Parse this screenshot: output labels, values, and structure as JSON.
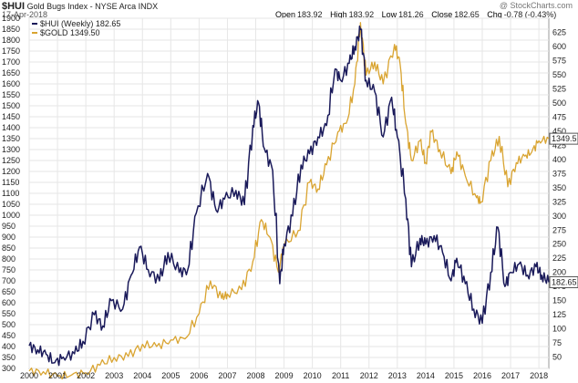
{
  "header": {
    "ticker": "$HUI",
    "title_rest": "Gold Bugs Index - NYSE Arca",
    "exchange": "INDX",
    "date": "17-Apr-2018",
    "watermark": "@ StockCharts.com",
    "ohlc": [
      {
        "label": "Open",
        "value": "183.92"
      },
      {
        "label": "High",
        "value": "183.92"
      },
      {
        "label": "Low",
        "value": "181.26"
      },
      {
        "label": "Close",
        "value": "182.65"
      },
      {
        "label": "Chg",
        "value": "-0.78 (-0.43%)"
      }
    ]
  },
  "chart_data": {
    "type": "line",
    "colors": {
      "hui": "#1a1a5a",
      "gold": "#d9a431",
      "grid": "#e6e6e6",
      "border": "#999999",
      "badge_hui_bg": "#1a1a5a"
    },
    "legend": [
      {
        "name": "$HUI (Weekly) 182.65",
        "color": "#1a1a5a"
      },
      {
        "name": "$GOLD 1349.50",
        "color": "#d9a431"
      }
    ],
    "x_ticks": [
      "2000",
      "2001",
      "2002",
      "2003",
      "2004",
      "2005",
      "2006",
      "2007",
      "2008",
      "2009",
      "2010",
      "2011",
      "2012",
      "2013",
      "2014",
      "2015",
      "2016",
      "2017",
      "2018"
    ],
    "x_range": [
      2000.0,
      2018.35
    ],
    "y_left": {
      "min": 300,
      "max": 1900,
      "ticks": [
        300,
        350,
        400,
        450,
        500,
        550,
        600,
        650,
        700,
        750,
        800,
        850,
        900,
        950,
        1000,
        1050,
        1100,
        1150,
        1200,
        1250,
        1300,
        1350,
        1400,
        1450,
        1500,
        1550,
        1600,
        1650,
        1700,
        1750,
        1800,
        1850,
        1900
      ]
    },
    "y_right": {
      "min": 30,
      "max": 650,
      "ticks": [
        50,
        75,
        100,
        125,
        150,
        175,
        200,
        225,
        250,
        275,
        300,
        325,
        350,
        375,
        400,
        425,
        450,
        475,
        500,
        525,
        550,
        575,
        600,
        625
      ]
    },
    "last_labels": {
      "gold": "1349.5",
      "hui": "182.65"
    },
    "series": [
      {
        "name": "$GOLD",
        "axis": "left",
        "points": [
          [
            2000.0,
            288
          ],
          [
            2000.5,
            285
          ],
          [
            2001.0,
            265
          ],
          [
            2001.5,
            270
          ],
          [
            2002.0,
            280
          ],
          [
            2002.5,
            315
          ],
          [
            2003.0,
            350
          ],
          [
            2003.5,
            355
          ],
          [
            2004.0,
            410
          ],
          [
            2004.5,
            400
          ],
          [
            2005.0,
            430
          ],
          [
            2005.5,
            435
          ],
          [
            2006.0,
            550
          ],
          [
            2006.4,
            700
          ],
          [
            2006.8,
            620
          ],
          [
            2007.0,
            640
          ],
          [
            2007.5,
            660
          ],
          [
            2007.9,
            790
          ],
          [
            2008.2,
            980
          ],
          [
            2008.5,
            900
          ],
          [
            2008.8,
            740
          ],
          [
            2009.0,
            860
          ],
          [
            2009.5,
            930
          ],
          [
            2009.9,
            1150
          ],
          [
            2010.2,
            1120
          ],
          [
            2010.5,
            1230
          ],
          [
            2010.9,
            1380
          ],
          [
            2011.2,
            1420
          ],
          [
            2011.5,
            1600
          ],
          [
            2011.7,
            1880
          ],
          [
            2011.9,
            1640
          ],
          [
            2012.2,
            1700
          ],
          [
            2012.5,
            1600
          ],
          [
            2012.9,
            1780
          ],
          [
            2013.1,
            1690
          ],
          [
            2013.3,
            1420
          ],
          [
            2013.5,
            1250
          ],
          [
            2013.8,
            1340
          ],
          [
            2014.0,
            1240
          ],
          [
            2014.2,
            1380
          ],
          [
            2014.5,
            1300
          ],
          [
            2014.9,
            1190
          ],
          [
            2015.1,
            1290
          ],
          [
            2015.4,
            1180
          ],
          [
            2015.8,
            1080
          ],
          [
            2015.95,
            1060
          ],
          [
            2016.3,
            1250
          ],
          [
            2016.6,
            1360
          ],
          [
            2016.9,
            1130
          ],
          [
            2017.2,
            1240
          ],
          [
            2017.5,
            1270
          ],
          [
            2017.75,
            1290
          ],
          [
            2018.0,
            1340
          ],
          [
            2018.35,
            1349.5
          ]
        ]
      },
      {
        "name": "$HUI",
        "axis": "right",
        "points": [
          [
            2000.0,
            70
          ],
          [
            2000.3,
            63
          ],
          [
            2000.6,
            55
          ],
          [
            2000.9,
            40
          ],
          [
            2001.2,
            50
          ],
          [
            2001.6,
            56
          ],
          [
            2001.9,
            78
          ],
          [
            2002.3,
            125
          ],
          [
            2002.6,
            105
          ],
          [
            2002.9,
            150
          ],
          [
            2003.3,
            135
          ],
          [
            2003.6,
            195
          ],
          [
            2003.9,
            245
          ],
          [
            2004.2,
            205
          ],
          [
            2004.6,
            185
          ],
          [
            2004.9,
            235
          ],
          [
            2005.3,
            200
          ],
          [
            2005.6,
            205
          ],
          [
            2005.9,
            305
          ],
          [
            2006.3,
            375
          ],
          [
            2006.6,
            310
          ],
          [
            2006.9,
            330
          ],
          [
            2007.3,
            345
          ],
          [
            2007.6,
            320
          ],
          [
            2007.9,
            460
          ],
          [
            2008.1,
            500
          ],
          [
            2008.3,
            420
          ],
          [
            2008.6,
            380
          ],
          [
            2008.85,
            180
          ],
          [
            2009.0,
            250
          ],
          [
            2009.3,
            300
          ],
          [
            2009.6,
            390
          ],
          [
            2009.9,
            410
          ],
          [
            2010.2,
            440
          ],
          [
            2010.5,
            460
          ],
          [
            2010.8,
            560
          ],
          [
            2011.0,
            540
          ],
          [
            2011.3,
            570
          ],
          [
            2011.5,
            600
          ],
          [
            2011.7,
            630
          ],
          [
            2011.9,
            540
          ],
          [
            2012.2,
            520
          ],
          [
            2012.5,
            440
          ],
          [
            2012.8,
            510
          ],
          [
            2013.0,
            440
          ],
          [
            2013.3,
            330
          ],
          [
            2013.5,
            210
          ],
          [
            2013.8,
            260
          ],
          [
            2014.0,
            250
          ],
          [
            2014.3,
            265
          ],
          [
            2014.6,
            235
          ],
          [
            2014.9,
            185
          ],
          [
            2015.1,
            225
          ],
          [
            2015.4,
            180
          ],
          [
            2015.7,
            135
          ],
          [
            2016.0,
            110
          ],
          [
            2016.3,
            200
          ],
          [
            2016.55,
            280
          ],
          [
            2016.8,
            175
          ],
          [
            2017.0,
            200
          ],
          [
            2017.3,
            215
          ],
          [
            2017.6,
            195
          ],
          [
            2017.9,
            210
          ],
          [
            2018.1,
            195
          ],
          [
            2018.35,
            182.65
          ]
        ]
      }
    ]
  }
}
